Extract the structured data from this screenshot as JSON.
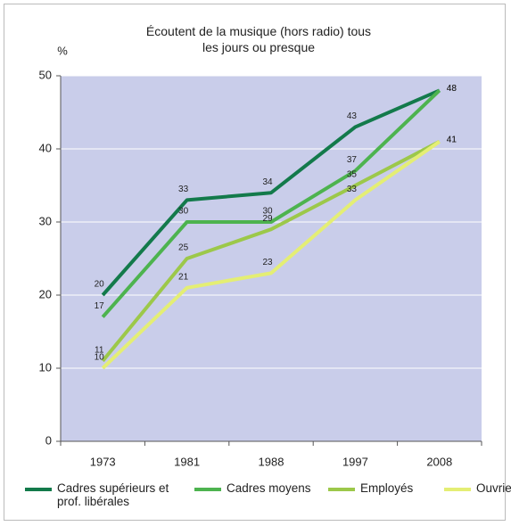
{
  "chart_data": {
    "type": "line",
    "title": "Écoutent de la musique (hors radio) tous les jours ou presque",
    "y_label": "%",
    "categories": [
      "1973",
      "1981",
      "1988",
      "1997",
      "2008"
    ],
    "series": [
      {
        "name": "Cadres supérieurs et prof. libérales",
        "color": "#137a4b",
        "values": [
          20,
          33,
          34,
          43,
          48
        ]
      },
      {
        "name": "Cadres moyens",
        "color": "#4db34f",
        "values": [
          17,
          30,
          30,
          37,
          48
        ]
      },
      {
        "name": "Employés",
        "color": "#9cc84a",
        "values": [
          11,
          25,
          29,
          35,
          41
        ]
      },
      {
        "name": "Ouvriers",
        "color": "#e4ee74",
        "values": [
          10,
          21,
          23,
          33,
          41
        ]
      }
    ],
    "ylim": [
      0,
      50
    ],
    "yticks": [
      0,
      10,
      20,
      30,
      40,
      50
    ],
    "grid": true,
    "plot_background": "#c9cdea",
    "legend": "bottom"
  }
}
